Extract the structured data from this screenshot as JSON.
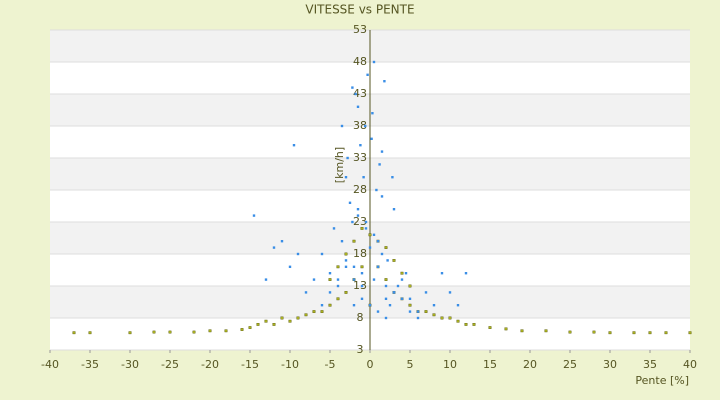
{
  "chart_data": {
    "type": "scatter",
    "title": "VITESSE vs PENTE",
    "x_label": "Pente [%]",
    "y_label": "[km/h]",
    "xlim": [
      -40,
      40
    ],
    "xticks": [
      -40,
      -35,
      -30,
      -25,
      -20,
      -15,
      -10,
      -5,
      0,
      5,
      10,
      15,
      20,
      25,
      30,
      35,
      40
    ],
    "ylim": [
      3,
      53
    ],
    "yticks": [
      3,
      8,
      13,
      18,
      23,
      28,
      33,
      38,
      43,
      48,
      53
    ],
    "grid": true,
    "series": [
      {
        "color": "#3a8ee6",
        "x": [
          -1,
          0.5,
          2,
          -2,
          3,
          -3,
          1,
          -0.5,
          4,
          -4,
          1.5,
          -1.5,
          2.5,
          -2.5,
          0,
          5,
          -5,
          3.5,
          -3.5,
          6,
          -6,
          0.8,
          -0.8,
          2.2,
          -2.2,
          7,
          -7,
          1.2,
          -1.2,
          4.5,
          -4.5,
          8,
          -8,
          0.3,
          -0.3,
          3,
          -3,
          9,
          -9,
          10,
          -10,
          11,
          -11,
          12,
          -12,
          -14.5,
          -13,
          0.5,
          -1.8,
          1.8,
          -0.6,
          2.8,
          -2.8,
          0,
          1,
          -1,
          2,
          -2,
          3,
          -3,
          4,
          -4,
          5,
          -5,
          6,
          -6,
          1,
          -1,
          0.5,
          -0.5,
          1.5,
          -1.5,
          2,
          -2,
          -2.2,
          -1.5,
          0.2,
          1.5,
          -3.5,
          -9.5
        ],
        "values": [
          15,
          14,
          13,
          16,
          12,
          17,
          20,
          22,
          11,
          14,
          18,
          24,
          10,
          26,
          19,
          9,
          12,
          13,
          20,
          8,
          10,
          28,
          30,
          17,
          23,
          12,
          14,
          32,
          35,
          15,
          22,
          10,
          12,
          40,
          46,
          25,
          30,
          15,
          18,
          12,
          16,
          10,
          20,
          15,
          19,
          24,
          14,
          48,
          43,
          45,
          38,
          30,
          33,
          10,
          9,
          11,
          8,
          10,
          12,
          16,
          14,
          13,
          11,
          15,
          9,
          18,
          16,
          13,
          21,
          23,
          27,
          25,
          11,
          14,
          44,
          41,
          36,
          34,
          38,
          35
        ]
      },
      {
        "color": "#a8b020",
        "x": [
          -37,
          -35,
          -30,
          -27,
          -25,
          -22,
          -20,
          -18,
          -16,
          -15,
          -14,
          -13,
          -12,
          -11,
          -10,
          -9,
          -8,
          -7,
          -6,
          -5,
          -4,
          -3,
          -2,
          -1,
          0,
          1,
          2,
          3,
          4,
          5,
          6,
          7,
          8,
          9,
          10,
          11,
          12,
          13,
          15,
          17,
          19,
          22,
          25,
          28,
          30,
          33,
          35,
          37,
          40,
          -3,
          -2,
          -1,
          0,
          1,
          2,
          3,
          -5,
          5,
          -4,
          4
        ],
        "values": [
          5.7,
          5.7,
          5.7,
          5.8,
          5.8,
          5.8,
          6,
          6,
          6.2,
          6.5,
          7,
          7.5,
          7,
          8,
          7.5,
          8,
          8.5,
          9,
          9,
          10,
          11,
          12,
          14,
          16,
          10,
          16,
          14,
          12,
          11,
          10,
          9,
          9,
          8.5,
          8,
          8,
          7.5,
          7,
          7,
          6.5,
          6.3,
          6,
          6,
          5.8,
          5.8,
          5.7,
          5.7,
          5.7,
          5.7,
          5.7,
          18,
          20,
          22,
          21,
          20,
          19,
          17,
          14,
          13,
          16,
          15
        ]
      }
    ]
  }
}
